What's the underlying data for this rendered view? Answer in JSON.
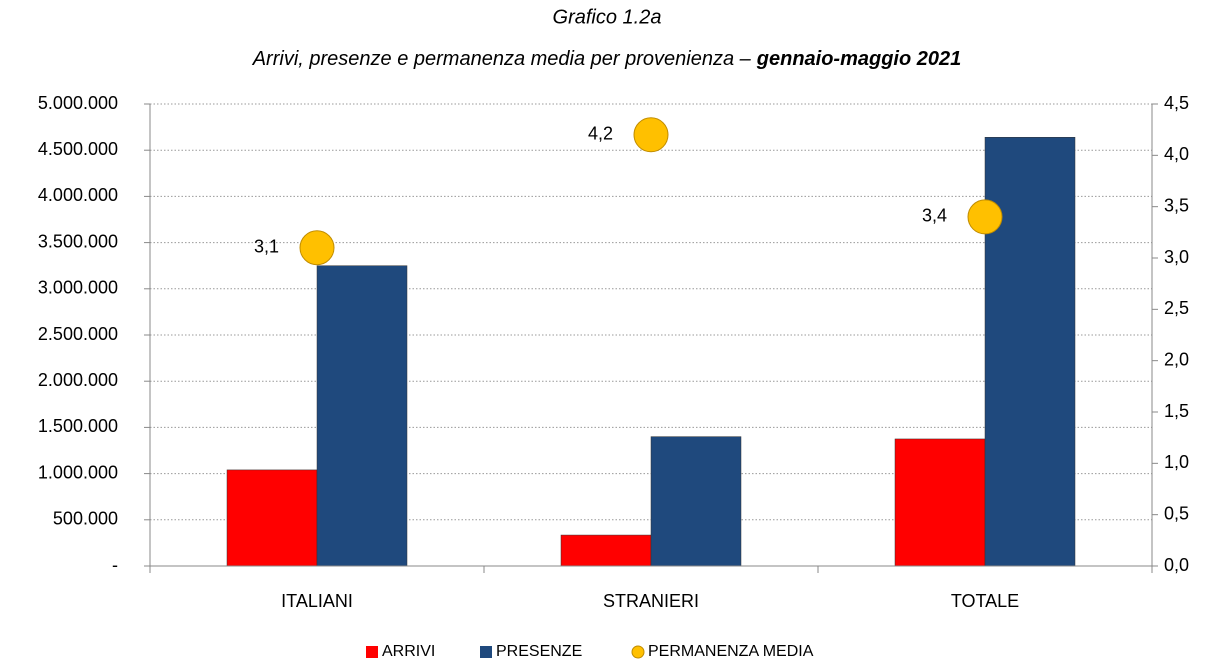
{
  "chart_data": {
    "type": "bar",
    "title": "Grafico 1.2a",
    "subtitle": "Arrivi, presenze e permanenza media per provenienza –",
    "subtitle_emphasis": "gennaio-maggio 2021",
    "categories": [
      "ITALIANI",
      "STRANIERI",
      "TOTALE"
    ],
    "series": [
      {
        "name": "ARRIVI",
        "color": "#ff0000",
        "values": [
          1040000,
          335000,
          1375000
        ]
      },
      {
        "name": "PRESENZE",
        "color": "#1f497d",
        "values": [
          3250000,
          1400000,
          4640000
        ]
      },
      {
        "name": "PERMANENZA MEDIA",
        "color": "#ffc000",
        "axis": "y2",
        "marker": "circle",
        "values": [
          3.1,
          4.2,
          3.4
        ],
        "value_labels": [
          "3,1",
          "4,2",
          "3,4"
        ]
      }
    ],
    "ylim": [
      0,
      5000000
    ],
    "yticks": [
      {
        "value": 0,
        "label": "-"
      },
      {
        "value": 500000,
        "label": "500.000"
      },
      {
        "value": 1000000,
        "label": "1.000.000"
      },
      {
        "value": 1500000,
        "label": "1.500.000"
      },
      {
        "value": 2000000,
        "label": "2.000.000"
      },
      {
        "value": 2500000,
        "label": "2.500.000"
      },
      {
        "value": 3000000,
        "label": "3.000.000"
      },
      {
        "value": 3500000,
        "label": "3.500.000"
      },
      {
        "value": 4000000,
        "label": "4.000.000"
      },
      {
        "value": 4500000,
        "label": "4.500.000"
      },
      {
        "value": 5000000,
        "label": "5.000.000"
      }
    ],
    "y2lim": [
      0,
      4.5
    ],
    "y2ticks": [
      {
        "value": 0,
        "label": "0,0"
      },
      {
        "value": 0.5,
        "label": "0,5"
      },
      {
        "value": 1,
        "label": "1,0"
      },
      {
        "value": 1.5,
        "label": "1,5"
      },
      {
        "value": 2,
        "label": "2,0"
      },
      {
        "value": 2.5,
        "label": "2,5"
      },
      {
        "value": 3,
        "label": "3,0"
      },
      {
        "value": 3.5,
        "label": "3,5"
      },
      {
        "value": 4,
        "label": "4,0"
      },
      {
        "value": 4.5,
        "label": "4,5"
      }
    ],
    "grid": true,
    "legend": "bottom"
  }
}
